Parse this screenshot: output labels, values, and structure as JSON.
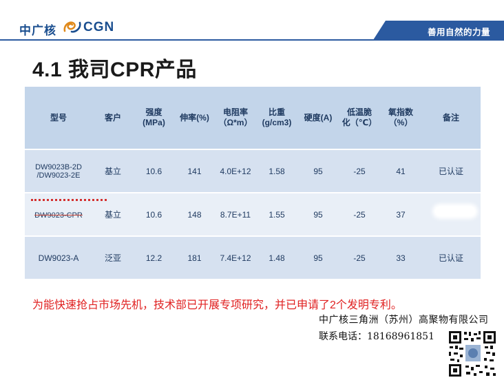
{
  "header": {
    "logo_cn": "中广核",
    "logo_en": "CGN",
    "slogan": "善用自然的力量"
  },
  "title": "4.1 我司CPR产品",
  "table": {
    "headers": [
      [
        "型号"
      ],
      [
        "客户"
      ],
      [
        "强度",
        "(MPa)"
      ],
      [
        "伸率(%)"
      ],
      [
        "电阻率",
        "（Ω*m）"
      ],
      [
        "比重",
        "(g/cm3)"
      ],
      [
        "硬度(A)"
      ],
      [
        "低温脆",
        "化（℃）"
      ],
      [
        "氧指数",
        "（%）"
      ],
      [
        "备注"
      ]
    ],
    "rows": [
      {
        "model": [
          "DW9023B-2D",
          "/DW9023-2E"
        ],
        "customer": "基立",
        "strength": "10.6",
        "elongation": "141",
        "resistivity": "4.0E+12",
        "density": "1.58",
        "hardness": "95",
        "brittle_temp": "-25",
        "oxygen_index": "41",
        "remark": "已认证"
      },
      {
        "model": [
          "DW9023-CPR"
        ],
        "customer": "基立",
        "strength": "10.6",
        "elongation": "148",
        "resistivity": "8.7E+11",
        "density": "1.55",
        "hardness": "95",
        "brittle_temp": "-25",
        "oxygen_index": "37",
        "remark": ""
      },
      {
        "model": [
          "DW9023-A"
        ],
        "customer": "泛亚",
        "strength": "12.2",
        "elongation": "181",
        "resistivity": "7.4E+12",
        "density": "1.48",
        "hardness": "95",
        "brittle_temp": "-25",
        "oxygen_index": "33",
        "remark": "已认证"
      }
    ]
  },
  "note": "为能快速抢占市场先机，技术部已开展专项研究，并已申请了2个发明专利。",
  "company": "中广核三角洲（苏州）高聚物有限公司",
  "contact": "联系电话：18168961851",
  "colors": {
    "brand_blue": "#1a4e8f",
    "slogan_bar": "#2b5aa0",
    "table_header": "#c3d5ea",
    "row_dark": "#d6e1f0",
    "row_light": "#e9eff7",
    "note_red": "#e02020"
  }
}
